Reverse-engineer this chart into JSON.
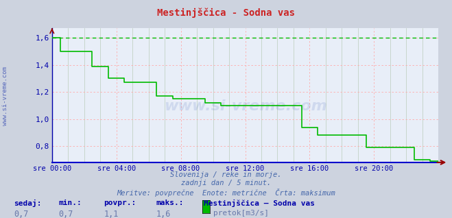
{
  "title": "Mestinjščica - Sodna vas",
  "fig_bg_color": "#cdd3df",
  "plot_bg_color": "#e8eef8",
  "grid_red_color": "#ffaaaa",
  "grid_green_color": "#bbccbb",
  "line_color": "#00bb00",
  "max_line_color": "#00bb00",
  "axis_color": "#0000aa",
  "tick_color": "#0000aa",
  "title_color": "#cc2222",
  "subtitle_color": "#4466aa",
  "footer_label_color": "#0000aa",
  "footer_value_color": "#6677aa",
  "watermark_color": "#2244aa",
  "x_ticks": [
    0,
    4,
    8,
    12,
    16,
    20
  ],
  "x_tick_labels": [
    "sre 00:00",
    "sre 04:00",
    "sre 08:00",
    "sre 12:00",
    "sre 16:00",
    "sre 20:00"
  ],
  "y_ticks": [
    0.8,
    1.0,
    1.2,
    1.4,
    1.6
  ],
  "ylim": [
    0.68,
    1.67
  ],
  "xlim": [
    0,
    24
  ],
  "max_value": 1.6,
  "subtitle1": "Slovenija / reke in morje.",
  "subtitle2": "zadnji dan / 5 minut.",
  "subtitle3": "Meritve: povprečne  Enote: metrične  Črta: maksimum",
  "footer_labels": [
    "sedaj:",
    "min.:",
    "povpr.:",
    "maks.:"
  ],
  "footer_values": [
    "0,7",
    "0,7",
    "1,1",
    "1,6"
  ],
  "footer_station": "Mestinjščica – Sodna vas",
  "footer_legend": "pretok[m3/s]",
  "watermark": "www.si-vreme.com",
  "left_label": "www.si-vreme.com",
  "series_x": [
    0.0,
    0.08,
    0.08,
    0.5,
    0.5,
    1.0,
    1.0,
    1.5,
    1.5,
    2.0,
    2.0,
    2.5,
    2.5,
    3.0,
    3.0,
    3.5,
    3.5,
    4.0,
    4.0,
    4.5,
    4.5,
    5.0,
    5.0,
    5.5,
    5.5,
    6.0,
    6.0,
    6.5,
    6.5,
    7.0,
    7.0,
    7.5,
    7.5,
    8.0,
    8.0,
    8.5,
    8.5,
    9.0,
    9.0,
    9.5,
    9.5,
    10.0,
    10.0,
    10.5,
    10.5,
    11.0,
    11.0,
    11.5,
    11.5,
    12.0,
    12.0,
    12.5,
    12.5,
    13.0,
    13.0,
    13.5,
    13.5,
    14.0,
    14.0,
    14.5,
    14.5,
    15.0,
    15.0,
    15.5,
    15.5,
    16.0,
    16.0,
    16.5,
    16.5,
    17.0,
    17.0,
    17.5,
    17.5,
    18.0,
    18.0,
    18.5,
    18.5,
    19.0,
    19.0,
    19.5,
    19.5,
    20.0,
    20.0,
    20.5,
    20.5,
    21.0,
    21.0,
    21.5,
    21.5,
    22.0,
    22.0,
    22.5,
    22.5,
    23.0,
    23.0,
    23.5,
    23.5,
    24.0
  ],
  "series_y": [
    1.6,
    1.6,
    1.6,
    1.6,
    1.5,
    1.5,
    1.5,
    1.5,
    1.5,
    1.5,
    1.5,
    1.5,
    1.39,
    1.39,
    1.39,
    1.39,
    1.3,
    1.3,
    1.3,
    1.3,
    1.27,
    1.27,
    1.27,
    1.27,
    1.27,
    1.27,
    1.27,
    1.27,
    1.17,
    1.17,
    1.17,
    1.17,
    1.15,
    1.15,
    1.15,
    1.15,
    1.15,
    1.15,
    1.15,
    1.15,
    1.12,
    1.12,
    1.12,
    1.12,
    1.1,
    1.1,
    1.1,
    1.1,
    1.1,
    1.1,
    1.1,
    1.1,
    1.1,
    1.1,
    1.1,
    1.1,
    1.1,
    1.1,
    1.1,
    1.1,
    1.1,
    1.1,
    1.1,
    1.1,
    0.94,
    0.94,
    0.94,
    0.94,
    0.88,
    0.88,
    0.88,
    0.88,
    0.88,
    0.88,
    0.88,
    0.88,
    0.88,
    0.88,
    0.88,
    0.88,
    0.79,
    0.79,
    0.79,
    0.79,
    0.79,
    0.79,
    0.79,
    0.79,
    0.79,
    0.79,
    0.79,
    0.79,
    0.7,
    0.7,
    0.7,
    0.7,
    0.69,
    0.69
  ]
}
